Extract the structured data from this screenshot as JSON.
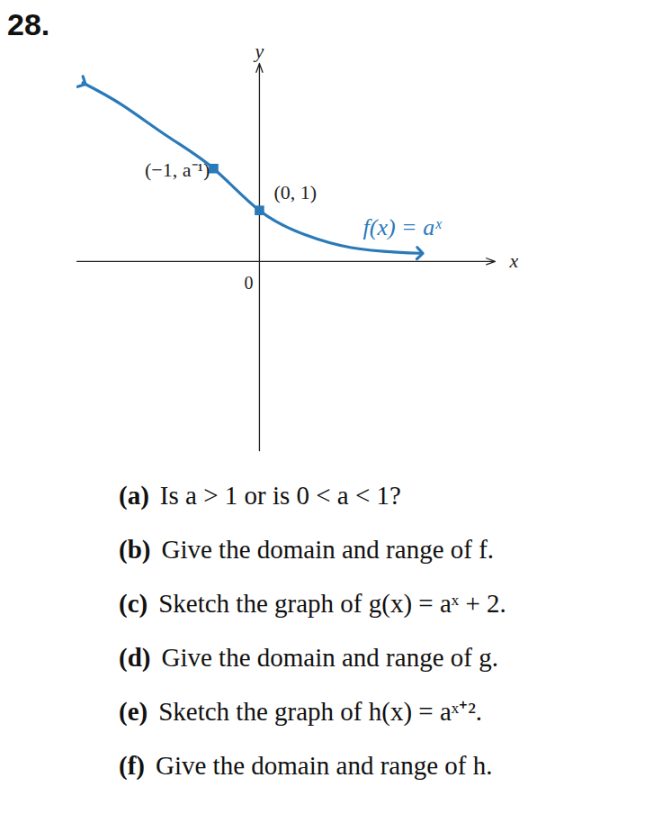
{
  "chart_data": {
    "type": "line",
    "x_label": "x",
    "y_label": "y",
    "x": [
      -3.85,
      -3,
      -2,
      -1,
      0,
      1,
      2,
      3,
      3.5
    ],
    "values": [
      3.5,
      3.07,
      2.45,
      1.82,
      1.0,
      0.52,
      0.27,
      0.18,
      0.16
    ],
    "color": "#2a7ab9",
    "xlim": [
      -3.98,
      5.14
    ],
    "ylim": [
      -3.71,
      3.88
    ],
    "xticks": [
      0
    ],
    "yticks": [],
    "tick_labels": "x",
    "grid": false,
    "points": [
      {
        "x": -1,
        "y": 1.82,
        "label": "(−1, a⁻¹)"
      },
      {
        "x": 0,
        "y": 1.0,
        "label": "(0, 1)"
      }
    ],
    "annotation": "f(x) = aˣ"
  },
  "exercise": {
    "number": "28.",
    "questions": [
      {
        "label": "(a)",
        "text": "Is a > 1 or is 0 < a < 1?"
      },
      {
        "label": "(b)",
        "text": "Give the domain and range of f."
      },
      {
        "label": "(c)",
        "text": "Sketch the graph of g(x) = aˣ + 2."
      },
      {
        "label": "(d)",
        "text": "Give the domain and range of g."
      },
      {
        "label": "(e)",
        "text": "Sketch the graph of h(x) = aˣ⁺²."
      },
      {
        "label": "(f)",
        "text": "Give the domain and range of h."
      }
    ]
  }
}
